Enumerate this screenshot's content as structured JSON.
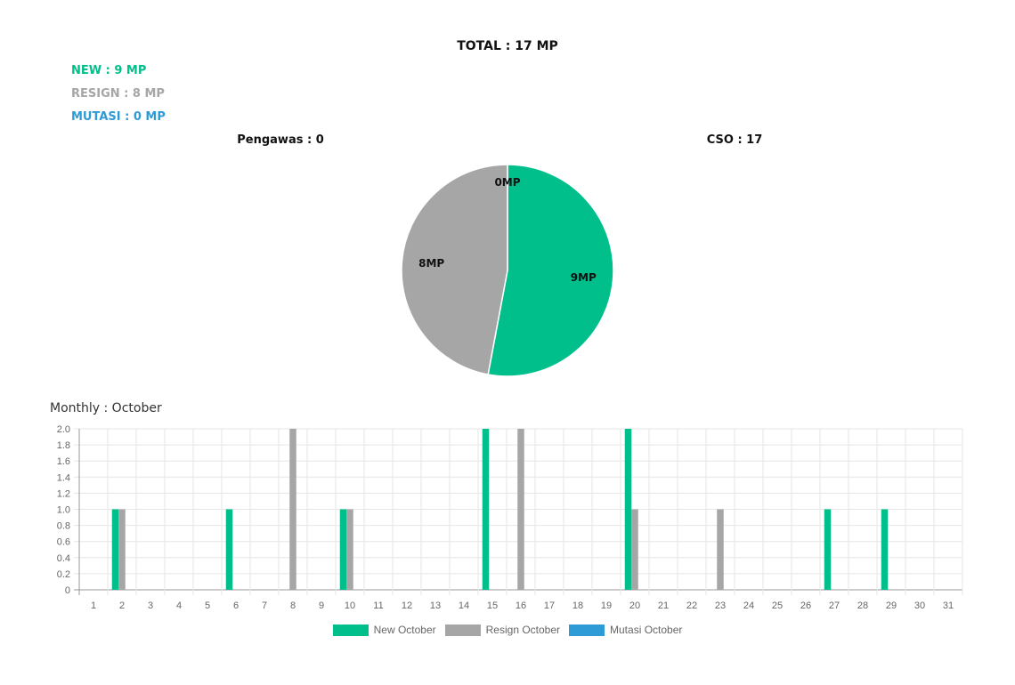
{
  "header": {
    "total": "TOTAL : 17 MP",
    "new": "NEW : 9 MP",
    "resign": "RESIGN : 8 MP",
    "mutasi": "MUTASI : 0 MP",
    "pengawas": "Pengawas : 0",
    "cso": "CSO : 17",
    "monthly": "Monthly : October"
  },
  "colors": {
    "new": "#00bf8a",
    "resign": "#a6a6a6",
    "mutasi": "#2f9bd6"
  },
  "chart_data": [
    {
      "type": "pie",
      "slices": [
        {
          "label": "9MP",
          "value": 9,
          "color": "#00bf8a"
        },
        {
          "label": "8MP",
          "value": 8,
          "color": "#a6a6a6"
        },
        {
          "label": "0MP",
          "value": 0,
          "color": "#2f9bd6"
        }
      ]
    },
    {
      "type": "bar",
      "categories": [
        "1",
        "2",
        "3",
        "4",
        "5",
        "6",
        "7",
        "8",
        "9",
        "10",
        "11",
        "12",
        "13",
        "14",
        "15",
        "16",
        "17",
        "18",
        "19",
        "20",
        "21",
        "22",
        "23",
        "24",
        "25",
        "26",
        "27",
        "28",
        "29",
        "30",
        "31"
      ],
      "ylim": [
        0,
        2.0
      ],
      "yticks": [
        "0",
        "0.2",
        "0.4",
        "0.6",
        "0.8",
        "1.0",
        "1.2",
        "1.4",
        "1.6",
        "1.8",
        "2.0"
      ],
      "grid": true,
      "legend_position": "bottom",
      "series": [
        {
          "name": "New October",
          "color": "#00bf8a",
          "values": [
            0,
            1,
            0,
            0,
            0,
            1,
            0,
            0,
            0,
            1,
            0,
            0,
            0,
            0,
            2,
            0,
            0,
            0,
            0,
            2,
            0,
            0,
            0,
            0,
            0,
            0,
            1,
            0,
            1,
            0,
            0
          ]
        },
        {
          "name": "Resign October",
          "color": "#a6a6a6",
          "values": [
            0,
            1,
            0,
            0,
            0,
            0,
            0,
            2,
            0,
            1,
            0,
            0,
            0,
            0,
            0,
            2,
            0,
            0,
            0,
            1,
            0,
            0,
            1,
            0,
            0,
            0,
            0,
            0,
            0,
            0,
            0
          ]
        },
        {
          "name": "Mutasi October",
          "color": "#2f9bd6",
          "values": [
            0,
            0,
            0,
            0,
            0,
            0,
            0,
            0,
            0,
            0,
            0,
            0,
            0,
            0,
            0,
            0,
            0,
            0,
            0,
            0,
            0,
            0,
            0,
            0,
            0,
            0,
            0,
            0,
            0,
            0,
            0
          ]
        }
      ]
    }
  ]
}
